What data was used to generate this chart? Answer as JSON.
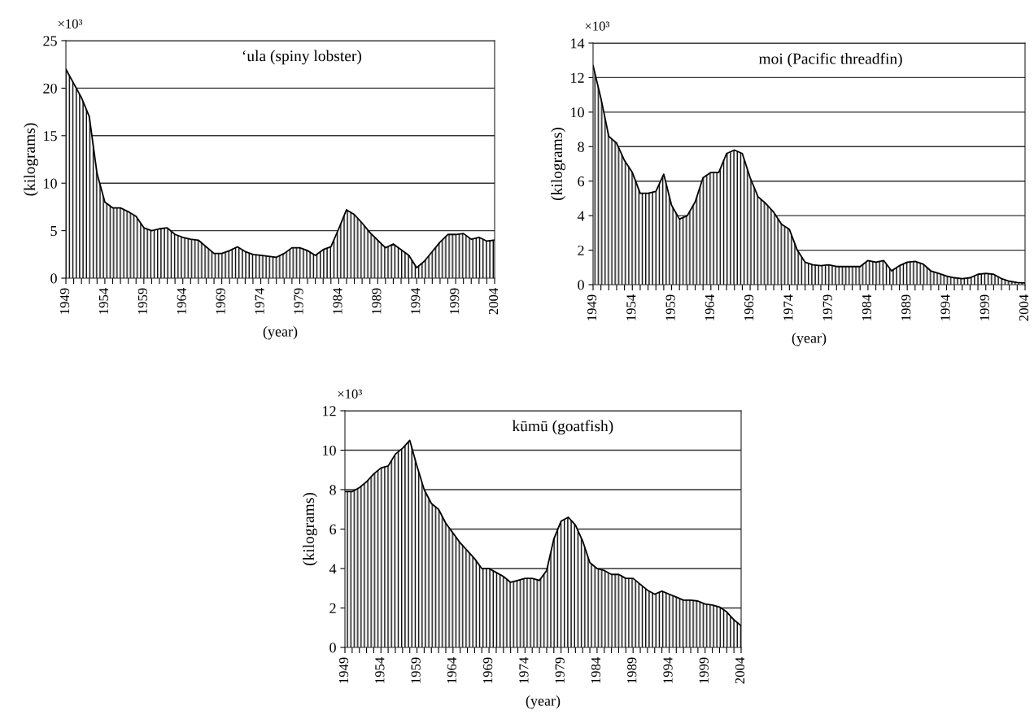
{
  "chart_data": [
    {
      "type": "area",
      "title": "‘ula (spiny lobster)",
      "xlabel": "(year)",
      "ylabel": "(kilograms)",
      "annotations": [
        "×10³"
      ],
      "x": [
        1949,
        1950,
        1951,
        1952,
        1953,
        1954,
        1955,
        1956,
        1957,
        1958,
        1959,
        1960,
        1961,
        1962,
        1963,
        1964,
        1965,
        1966,
        1967,
        1968,
        1969,
        1970,
        1971,
        1972,
        1973,
        1974,
        1975,
        1976,
        1977,
        1978,
        1979,
        1980,
        1981,
        1982,
        1983,
        1984,
        1985,
        1986,
        1987,
        1988,
        1989,
        1990,
        1991,
        1992,
        1993,
        1994,
        1995,
        1996,
        1997,
        1998,
        1999,
        2000,
        2001,
        2002,
        2003,
        2004
      ],
      "series": [
        {
          "color": "#000000",
          "values": [
            22,
            20.5,
            19,
            17,
            11,
            8,
            7.4,
            7.4,
            7,
            6.5,
            5.3,
            5,
            5.2,
            5.3,
            4.6,
            4.3,
            4.1,
            4,
            3.3,
            2.6,
            2.6,
            2.9,
            3.3,
            2.8,
            2.5,
            2.4,
            2.3,
            2.2,
            2.6,
            3.2,
            3.2,
            2.9,
            2.4,
            3,
            3.3,
            5.2,
            7.2,
            6.7,
            5.8,
            4.8,
            4,
            3.2,
            3.6,
            3,
            2.4,
            1.1,
            1.8,
            2.8,
            3.8,
            4.6,
            4.6,
            4.7,
            4.1,
            4.3,
            3.9,
            4
          ]
        }
      ],
      "xlim": [
        1949,
        2004
      ],
      "xticks": [
        1949,
        {
          "value": 1950,
          "label": null
        },
        {
          "value": 1951,
          "label": null
        },
        {
          "value": 1952,
          "label": null
        },
        {
          "value": 1953,
          "label": null
        },
        1954,
        {
          "value": 1955,
          "label": null
        },
        {
          "value": 1956,
          "label": null
        },
        {
          "value": 1957,
          "label": null
        },
        {
          "value": 1958,
          "label": null
        },
        1959,
        {
          "value": 1960,
          "label": null
        },
        {
          "value": 1961,
          "label": null
        },
        {
          "value": 1962,
          "label": null
        },
        {
          "value": 1963,
          "label": null
        },
        1964,
        {
          "value": 1965,
          "label": null
        },
        {
          "value": 1966,
          "label": null
        },
        {
          "value": 1967,
          "label": null
        },
        {
          "value": 1968,
          "label": null
        },
        1969,
        {
          "value": 1970,
          "label": null
        },
        {
          "value": 1971,
          "label": null
        },
        {
          "value": 1972,
          "label": null
        },
        {
          "value": 1973,
          "label": null
        },
        1974,
        {
          "value": 1975,
          "label": null
        },
        {
          "value": 1976,
          "label": null
        },
        {
          "value": 1977,
          "label": null
        },
        {
          "value": 1978,
          "label": null
        },
        1979,
        {
          "value": 1980,
          "label": null
        },
        {
          "value": 1981,
          "label": null
        },
        {
          "value": 1982,
          "label": null
        },
        {
          "value": 1983,
          "label": null
        },
        1984,
        {
          "value": 1985,
          "label": null
        },
        {
          "value": 1986,
          "label": null
        },
        {
          "value": 1987,
          "label": null
        },
        {
          "value": 1988,
          "label": null
        },
        1989,
        {
          "value": 1990,
          "label": null
        },
        {
          "value": 1991,
          "label": null
        },
        {
          "value": 1992,
          "label": null
        },
        {
          "value": 1993,
          "label": null
        },
        1994,
        {
          "value": 1995,
          "label": null
        },
        {
          "value": 1996,
          "label": null
        },
        {
          "value": 1997,
          "label": null
        },
        {
          "value": 1998,
          "label": null
        },
        1999,
        {
          "value": 2000,
          "label": null
        },
        {
          "value": 2001,
          "label": null
        },
        {
          "value": 2002,
          "label": null
        },
        {
          "value": 2003,
          "label": null
        },
        2004
      ],
      "ylim": [
        0,
        25
      ],
      "yticks": [
        0,
        5,
        10,
        15,
        20,
        25
      ],
      "grid": "y",
      "legend": false
    },
    {
      "type": "area",
      "title": "moi (Pacific threadfin)",
      "xlabel": "(year)",
      "ylabel": "(kilograms)",
      "annotations": [
        "×10³"
      ],
      "x": [
        1949,
        1950,
        1951,
        1952,
        1953,
        1954,
        1955,
        1956,
        1957,
        1958,
        1959,
        1960,
        1961,
        1962,
        1963,
        1964,
        1965,
        1966,
        1967,
        1968,
        1969,
        1970,
        1971,
        1972,
        1973,
        1974,
        1975,
        1976,
        1977,
        1978,
        1979,
        1980,
        1981,
        1982,
        1983,
        1984,
        1985,
        1986,
        1987,
        1988,
        1989,
        1990,
        1991,
        1992,
        1993,
        1994,
        1995,
        1996,
        1997,
        1998,
        1999,
        2000,
        2001,
        2002,
        2003,
        2004
      ],
      "series": [
        {
          "color": "#000000",
          "values": [
            12.7,
            10.8,
            8.6,
            8.2,
            7.2,
            6.5,
            5.3,
            5.3,
            5.4,
            6.4,
            4.6,
            3.8,
            4,
            4.8,
            6.2,
            6.5,
            6.5,
            7.6,
            7.8,
            7.6,
            6.2,
            5.1,
            4.7,
            4.2,
            3.5,
            3.2,
            2,
            1.3,
            1.15,
            1.1,
            1.15,
            1.05,
            1.05,
            1.05,
            1.05,
            1.4,
            1.3,
            1.4,
            0.8,
            1.1,
            1.3,
            1.35,
            1.2,
            0.8,
            0.65,
            0.5,
            0.4,
            0.35,
            0.4,
            0.6,
            0.65,
            0.6,
            0.35,
            0.2,
            0.12,
            0.1
          ]
        }
      ],
      "xlim": [
        1949,
        2004
      ],
      "xticks": [
        1949,
        {
          "value": 1950,
          "label": null
        },
        {
          "value": 1951,
          "label": null
        },
        {
          "value": 1952,
          "label": null
        },
        {
          "value": 1953,
          "label": null
        },
        1954,
        {
          "value": 1955,
          "label": null
        },
        {
          "value": 1956,
          "label": null
        },
        {
          "value": 1957,
          "label": null
        },
        {
          "value": 1958,
          "label": null
        },
        1959,
        {
          "value": 1960,
          "label": null
        },
        {
          "value": 1961,
          "label": null
        },
        {
          "value": 1962,
          "label": null
        },
        {
          "value": 1963,
          "label": null
        },
        1964,
        {
          "value": 1965,
          "label": null
        },
        {
          "value": 1966,
          "label": null
        },
        {
          "value": 1967,
          "label": null
        },
        {
          "value": 1968,
          "label": null
        },
        1969,
        {
          "value": 1970,
          "label": null
        },
        {
          "value": 1971,
          "label": null
        },
        {
          "value": 1972,
          "label": null
        },
        {
          "value": 1973,
          "label": null
        },
        1974,
        {
          "value": 1975,
          "label": null
        },
        {
          "value": 1976,
          "label": null
        },
        {
          "value": 1977,
          "label": null
        },
        {
          "value": 1978,
          "label": null
        },
        1979,
        {
          "value": 1980,
          "label": null
        },
        {
          "value": 1981,
          "label": null
        },
        {
          "value": 1982,
          "label": null
        },
        {
          "value": 1983,
          "label": null
        },
        1984,
        {
          "value": 1985,
          "label": null
        },
        {
          "value": 1986,
          "label": null
        },
        {
          "value": 1987,
          "label": null
        },
        {
          "value": 1988,
          "label": null
        },
        1989,
        {
          "value": 1990,
          "label": null
        },
        {
          "value": 1991,
          "label": null
        },
        {
          "value": 1992,
          "label": null
        },
        {
          "value": 1993,
          "label": null
        },
        1994,
        {
          "value": 1995,
          "label": null
        },
        {
          "value": 1996,
          "label": null
        },
        {
          "value": 1997,
          "label": null
        },
        {
          "value": 1998,
          "label": null
        },
        1999,
        {
          "value": 2000,
          "label": null
        },
        {
          "value": 2001,
          "label": null
        },
        {
          "value": 2002,
          "label": null
        },
        {
          "value": 2003,
          "label": null
        },
        2004
      ],
      "ylim": [
        0,
        14
      ],
      "yticks": [
        0,
        2,
        4,
        6,
        8,
        10,
        12,
        14
      ],
      "grid": "y",
      "legend": false
    },
    {
      "type": "area",
      "title": "kūmū (goatfish)",
      "xlabel": "(year)",
      "ylabel": "(kilograms)",
      "annotations": [
        "×10³"
      ],
      "x": [
        1949,
        1950,
        1951,
        1952,
        1953,
        1954,
        1955,
        1956,
        1957,
        1958,
        1959,
        1960,
        1961,
        1962,
        1963,
        1964,
        1965,
        1966,
        1967,
        1968,
        1969,
        1970,
        1971,
        1972,
        1973,
        1974,
        1975,
        1976,
        1977,
        1978,
        1979,
        1980,
        1981,
        1982,
        1983,
        1984,
        1985,
        1986,
        1987,
        1988,
        1989,
        1990,
        1991,
        1992,
        1993,
        1994,
        1995,
        1996,
        1997,
        1998,
        1999,
        2000,
        2001,
        2002,
        2003,
        2004
      ],
      "series": [
        {
          "color": "#000000",
          "values": [
            7.9,
            7.9,
            8.1,
            8.4,
            8.8,
            9.1,
            9.2,
            9.8,
            10.1,
            10.5,
            9.2,
            8,
            7.3,
            7,
            6.3,
            5.8,
            5.3,
            4.9,
            4.5,
            4,
            4,
            3.8,
            3.6,
            3.3,
            3.4,
            3.5,
            3.5,
            3.4,
            3.9,
            5.5,
            6.4,
            6.6,
            6.2,
            5.4,
            4.3,
            4,
            3.9,
            3.7,
            3.7,
            3.5,
            3.5,
            3.2,
            2.9,
            2.7,
            2.85,
            2.7,
            2.55,
            2.4,
            2.4,
            2.35,
            2.2,
            2.15,
            2.05,
            1.8,
            1.4,
            1.1
          ]
        }
      ],
      "xlim": [
        1949,
        2004
      ],
      "xticks": [
        1949,
        {
          "value": 1950,
          "label": null
        },
        {
          "value": 1951,
          "label": null
        },
        {
          "value": 1952,
          "label": null
        },
        {
          "value": 1953,
          "label": null
        },
        1954,
        {
          "value": 1955,
          "label": null
        },
        {
          "value": 1956,
          "label": null
        },
        {
          "value": 1957,
          "label": null
        },
        {
          "value": 1958,
          "label": null
        },
        1959,
        {
          "value": 1960,
          "label": null
        },
        {
          "value": 1961,
          "label": null
        },
        {
          "value": 1962,
          "label": null
        },
        {
          "value": 1963,
          "label": null
        },
        1964,
        {
          "value": 1965,
          "label": null
        },
        {
          "value": 1966,
          "label": null
        },
        {
          "value": 1967,
          "label": null
        },
        {
          "value": 1968,
          "label": null
        },
        1969,
        {
          "value": 1970,
          "label": null
        },
        {
          "value": 1971,
          "label": null
        },
        {
          "value": 1972,
          "label": null
        },
        {
          "value": 1973,
          "label": null
        },
        1974,
        {
          "value": 1975,
          "label": null
        },
        {
          "value": 1976,
          "label": null
        },
        {
          "value": 1977,
          "label": null
        },
        {
          "value": 1978,
          "label": null
        },
        1979,
        {
          "value": 1980,
          "label": null
        },
        {
          "value": 1981,
          "label": null
        },
        {
          "value": 1982,
          "label": null
        },
        {
          "value": 1983,
          "label": null
        },
        1984,
        {
          "value": 1985,
          "label": null
        },
        {
          "value": 1986,
          "label": null
        },
        {
          "value": 1987,
          "label": null
        },
        {
          "value": 1988,
          "label": null
        },
        1989,
        {
          "value": 1990,
          "label": null
        },
        {
          "value": 1991,
          "label": null
        },
        {
          "value": 1992,
          "label": null
        },
        {
          "value": 1993,
          "label": null
        },
        1994,
        {
          "value": 1995,
          "label": null
        },
        {
          "value": 1996,
          "label": null
        },
        {
          "value": 1997,
          "label": null
        },
        {
          "value": 1998,
          "label": null
        },
        1999,
        {
          "value": 2000,
          "label": null
        },
        {
          "value": 2001,
          "label": null
        },
        {
          "value": 2002,
          "label": null
        },
        {
          "value": 2003,
          "label": null
        },
        2004
      ],
      "ylim": [
        0,
        12
      ],
      "yticks": [
        0,
        2,
        4,
        6,
        8,
        10,
        12
      ],
      "grid": "y",
      "legend": false
    }
  ]
}
